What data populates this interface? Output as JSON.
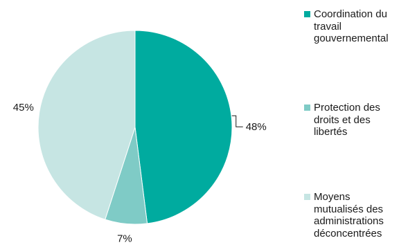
{
  "chart_data": {
    "type": "pie",
    "slices": [
      {
        "name": "Coordination du\ntravail\ngouvernemental",
        "value": 48,
        "label": "48%",
        "color": "#00ab9f"
      },
      {
        "name": "Protection des\ndroits et des\nlibertés",
        "value": 7,
        "label": "7%",
        "color": "#7fcbc6"
      },
      {
        "name": "Moyens\nmutualisés des\nadministrations\ndéconcentrées",
        "value": 45,
        "label": "45%",
        "color": "#c6e5e3"
      }
    ],
    "legend_position": "right",
    "start_angle_deg": 0,
    "direction": "clockwise"
  }
}
